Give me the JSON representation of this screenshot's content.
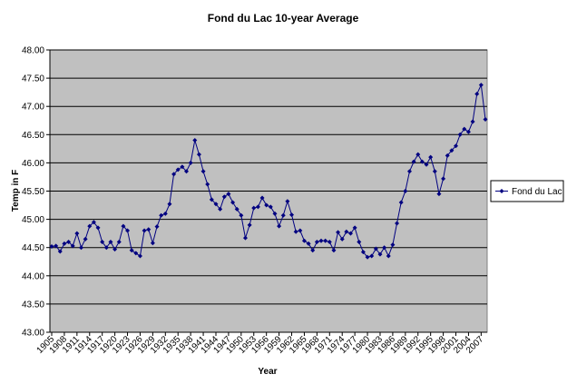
{
  "chart_data": {
    "type": "line",
    "title": "Fond du Lac 10-year Average",
    "x_label": "Year",
    "y_label": "Temp in F",
    "categories": [
      "1905",
      null,
      null,
      "1908",
      null,
      null,
      "1911",
      null,
      null,
      "1914",
      null,
      null,
      "1917",
      null,
      null,
      "1920",
      null,
      null,
      "1923",
      null,
      null,
      "1926",
      null,
      null,
      "1929",
      null,
      null,
      "1932",
      null,
      null,
      "1935",
      null,
      null,
      "1938",
      null,
      null,
      "1941",
      null,
      null,
      "1944",
      null,
      null,
      "1947",
      null,
      null,
      "1950",
      null,
      null,
      "1953",
      null,
      null,
      "1956",
      null,
      null,
      "1959",
      null,
      null,
      "1962",
      null,
      null,
      "1965",
      null,
      null,
      "1968",
      null,
      null,
      "1971",
      null,
      null,
      "1974",
      null,
      null,
      "1977",
      null,
      null,
      "1980",
      null,
      null,
      "1983",
      null,
      null,
      "1986",
      null,
      null,
      "1989",
      null,
      null,
      "1992",
      null,
      null,
      "1995",
      null,
      null,
      "1998",
      null,
      null,
      "2001",
      null,
      null,
      "2004",
      null,
      null,
      "2007",
      null
    ],
    "series": [
      {
        "name": "Fond du Lac",
        "color": "#000080",
        "values": [
          44.52,
          44.53,
          44.43,
          44.57,
          44.6,
          44.53,
          44.75,
          44.5,
          44.65,
          44.88,
          44.95,
          44.85,
          44.6,
          44.5,
          44.6,
          44.47,
          44.6,
          44.88,
          44.8,
          44.45,
          44.4,
          44.35,
          44.8,
          44.82,
          44.58,
          44.87,
          45.07,
          45.1,
          45.27,
          45.8,
          45.88,
          45.93,
          45.85,
          46.0,
          46.4,
          46.15,
          45.85,
          45.62,
          45.35,
          45.27,
          45.18,
          45.4,
          45.45,
          45.3,
          45.18,
          45.07,
          44.67,
          44.9,
          45.2,
          45.22,
          45.38,
          45.25,
          45.22,
          45.1,
          44.88,
          45.07,
          45.32,
          45.08,
          44.78,
          44.8,
          44.62,
          44.57,
          44.45,
          44.6,
          44.62,
          44.62,
          44.6,
          44.45,
          44.77,
          44.65,
          44.78,
          44.75,
          44.85,
          44.6,
          44.42,
          44.33,
          44.35,
          44.48,
          44.38,
          44.5,
          44.35,
          44.55,
          44.93,
          45.3,
          45.5,
          45.85,
          46.02,
          46.15,
          46.02,
          45.97,
          46.1,
          45.85,
          45.45,
          45.72,
          46.13,
          46.22,
          46.3,
          46.5,
          46.6,
          46.55,
          46.73,
          47.22,
          47.38,
          46.77
        ]
      }
    ],
    "ylim": [
      43,
      48
    ],
    "yticks": [
      {
        "value": 43,
        "label": "43.00"
      },
      {
        "value": 43.5,
        "label": "43.50"
      },
      {
        "value": 44,
        "label": "44.00"
      },
      {
        "value": 44.5,
        "label": "44.50"
      },
      {
        "value": 45,
        "label": "45.00"
      },
      {
        "value": 45.5,
        "label": "45.50"
      },
      {
        "value": 46,
        "label": "46.00"
      },
      {
        "value": 46.5,
        "label": "46.50"
      },
      {
        "value": 47,
        "label": "47.00"
      },
      {
        "value": 47.5,
        "label": "47.50"
      },
      {
        "value": 48,
        "label": "48.00"
      }
    ],
    "grid": true,
    "legend": "right",
    "plot_background": "#c0c0c0"
  }
}
